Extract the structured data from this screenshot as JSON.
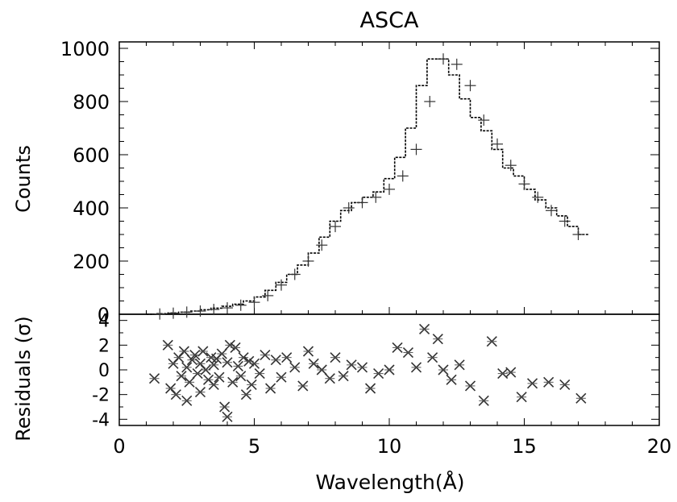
{
  "chart_data": [
    {
      "type": "line",
      "panel": "spectrum",
      "title": "ASCA",
      "xlabel": "",
      "ylabel": "Counts",
      "xlim": [
        0,
        20
      ],
      "ylim": [
        0,
        1000
      ],
      "x_ticks": [
        0,
        5,
        10,
        15,
        20
      ],
      "y_ticks": [
        0,
        200,
        400,
        600,
        800,
        1000
      ],
      "y_tick_labels": [
        "0",
        "200",
        "400",
        "600",
        "800",
        "1000"
      ],
      "grid": false,
      "series": [
        {
          "style": "model-histogram",
          "x": [
            1.2,
            1.6,
            2.0,
            2.4,
            2.8,
            3.2,
            3.6,
            4.0,
            4.4,
            4.8,
            5.2,
            5.6,
            6.0,
            6.4,
            6.8,
            7.2,
            7.6,
            8.0,
            8.4,
            8.8,
            9.2,
            9.6,
            10.0,
            10.4,
            10.8,
            11.2,
            11.6,
            12.0,
            12.4,
            12.8,
            13.2,
            13.6,
            14.0,
            14.4,
            14.8,
            15.2,
            15.6,
            16.0,
            16.4,
            16.8,
            17.2
          ],
          "y": [
            0,
            2,
            5,
            8,
            12,
            17,
            23,
            30,
            38,
            50,
            65,
            90,
            120,
            150,
            185,
            230,
            290,
            350,
            390,
            420,
            440,
            460,
            510,
            590,
            700,
            860,
            960,
            960,
            900,
            810,
            740,
            690,
            620,
            550,
            520,
            470,
            430,
            400,
            370,
            330,
            300
          ]
        },
        {
          "style": "data-crosses",
          "x": [
            1.5,
            2.0,
            2.5,
            3.0,
            3.5,
            4.0,
            4.5,
            5.0,
            5.5,
            6.0,
            6.5,
            7.0,
            7.5,
            8.0,
            8.5,
            9.0,
            9.5,
            10.0,
            10.5,
            11.0,
            11.5,
            12.0,
            12.5,
            13.0,
            13.5,
            14.0,
            14.5,
            15.0,
            15.5,
            16.0,
            16.5,
            17.0
          ],
          "y": [
            1,
            4,
            8,
            12,
            18,
            24,
            34,
            45,
            70,
            110,
            150,
            200,
            260,
            330,
            400,
            420,
            440,
            470,
            520,
            620,
            800,
            960,
            940,
            860,
            730,
            640,
            560,
            490,
            440,
            390,
            350,
            300
          ]
        }
      ]
    },
    {
      "type": "scatter",
      "panel": "residuals",
      "xlabel": "Wavelength(Å)",
      "ylabel": "Residuals (σ)",
      "xlim": [
        0,
        20
      ],
      "ylim": [
        -4.5,
        4.5
      ],
      "x_ticks": [
        0,
        5,
        10,
        15,
        20
      ],
      "x_tick_labels": [
        "0",
        "5",
        "10",
        "15",
        "20"
      ],
      "y_ticks": [
        -4,
        -2,
        0,
        2,
        4
      ],
      "y_tick_labels": [
        "-4",
        "-2",
        "0",
        "2",
        "4"
      ],
      "grid": false,
      "series": [
        {
          "style": "data-crosses",
          "x": [
            1.3,
            1.8,
            1.9,
            2.0,
            2.1,
            2.2,
            2.3,
            2.4,
            2.5,
            2.5,
            2.6,
            2.7,
            2.8,
            2.9,
            3.0,
            3.0,
            3.1,
            3.2,
            3.3,
            3.4,
            3.5,
            3.5,
            3.6,
            3.7,
            3.8,
            3.9,
            4.0,
            4.0,
            4.1,
            4.2,
            4.3,
            4.4,
            4.5,
            4.6,
            4.7,
            4.8,
            4.9,
            5.0,
            5.2,
            5.4,
            5.6,
            5.8,
            6.0,
            6.2,
            6.5,
            6.8,
            7.0,
            7.2,
            7.5,
            7.8,
            8.0,
            8.3,
            8.6,
            9.0,
            9.3,
            9.6,
            10.0,
            10.3,
            10.7,
            11.0,
            11.3,
            11.6,
            11.8,
            12.0,
            12.3,
            12.6,
            13.0,
            13.5,
            13.8,
            14.2,
            14.5,
            14.9,
            15.3,
            15.9,
            16.5,
            17.1
          ],
          "y": [
            -0.7,
            2.0,
            -1.5,
            0.5,
            -2.0,
            1.0,
            -0.5,
            1.5,
            -2.5,
            0.2,
            -1.0,
            0.8,
            1.2,
            -0.3,
            0.5,
            -1.8,
            1.5,
            0.0,
            -0.8,
            1.0,
            -1.2,
            0.4,
            0.9,
            -0.6,
            1.3,
            -3.0,
            0.6,
            -3.8,
            2.0,
            -1.0,
            1.8,
            0.3,
            -0.5,
            1.0,
            -2.0,
            0.7,
            -1.2,
            0.5,
            -0.3,
            1.2,
            -1.5,
            0.8,
            -0.6,
            1.0,
            0.2,
            -1.3,
            1.5,
            0.5,
            0.0,
            -0.7,
            1.0,
            -0.5,
            0.4,
            0.2,
            -1.5,
            -0.3,
            0.0,
            1.8,
            1.4,
            0.2,
            3.3,
            1.0,
            2.5,
            0.0,
            -0.8,
            0.4,
            -1.3,
            -2.5,
            2.3,
            -0.3,
            -0.2,
            -2.2,
            -1.1,
            -1.0,
            -1.2,
            -2.3
          ]
        }
      ]
    }
  ]
}
